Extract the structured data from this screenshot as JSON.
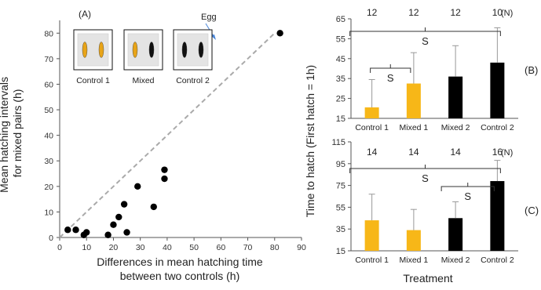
{
  "chart_data": [
    {
      "panel": "(A)",
      "type": "scatter",
      "xlabel_lines": [
        "Differences in mean hatching time",
        "between two controls (h)"
      ],
      "ylabel_lines": [
        "Mean hatching intervals",
        "for mixed pairs (h)"
      ],
      "xlim": [
        0,
        90
      ],
      "ylim": [
        0,
        85
      ],
      "x_ticks": [
        0,
        10,
        20,
        30,
        40,
        50,
        60,
        70,
        80,
        90
      ],
      "y_ticks": [
        0,
        10,
        20,
        30,
        40,
        50,
        60,
        70,
        80
      ],
      "points": [
        {
          "x": 3,
          "y": 3
        },
        {
          "x": 6,
          "y": 3
        },
        {
          "x": 9,
          "y": 1
        },
        {
          "x": 10,
          "y": 2
        },
        {
          "x": 18,
          "y": 1
        },
        {
          "x": 20,
          "y": 5
        },
        {
          "x": 22,
          "y": 8
        },
        {
          "x": 24,
          "y": 13
        },
        {
          "x": 25,
          "y": 2
        },
        {
          "x": 29,
          "y": 20
        },
        {
          "x": 35,
          "y": 12
        },
        {
          "x": 39,
          "y": 23
        },
        {
          "x": 39,
          "y": 26.5
        },
        {
          "x": 82,
          "y": 80
        }
      ],
      "reference_line": {
        "style": "dashed",
        "color": "#aaaaaa",
        "from": [
          0,
          0
        ],
        "to": [
          80,
          80
        ]
      },
      "insets": [
        {
          "label": "Control 1",
          "eggs": [
            "#e8a418",
            "#e8a418"
          ]
        },
        {
          "label": "Mixed",
          "eggs": [
            "#e8a418",
            "#111111"
          ]
        },
        {
          "label": "Control 2",
          "eggs": [
            "#111111",
            "#111111"
          ]
        }
      ],
      "annotation": "Egg"
    },
    {
      "panel": "(B)",
      "type": "bar",
      "categories": [
        "Control 1",
        "Mixed 1",
        "Mixed 2",
        "Control 2"
      ],
      "values": [
        20.5,
        32.5,
        36,
        43
      ],
      "error_upper": [
        34.5,
        48,
        51.5,
        60.5
      ],
      "colors": [
        "#f7b718",
        "#f7b718",
        "#000000",
        "#000000"
      ],
      "n_values": [
        "12",
        "12",
        "12",
        "10"
      ],
      "n_label": "(N)",
      "ylim": [
        15,
        65
      ],
      "y_ticks": [
        15,
        25,
        35,
        45,
        55,
        65
      ],
      "significance": [
        {
          "from": 0,
          "to": 1,
          "label": "S"
        },
        {
          "from": 0,
          "to": 3,
          "label": "S"
        }
      ]
    },
    {
      "panel": "(C)",
      "type": "bar",
      "categories": [
        "Control 1",
        "Mixed 1",
        "Mixed 2",
        "Control 2"
      ],
      "values": [
        43,
        34,
        45,
        79
      ],
      "error_upper": [
        67,
        53,
        60,
        98
      ],
      "colors": [
        "#f7b718",
        "#f7b718",
        "#000000",
        "#000000"
      ],
      "n_values": [
        "14",
        "14",
        "14",
        "16"
      ],
      "n_label": "(N)",
      "ylim": [
        15,
        115
      ],
      "y_ticks": [
        15,
        35,
        55,
        75,
        95,
        115
      ],
      "significance": [
        {
          "from": 2,
          "to": 3,
          "label": "S"
        },
        {
          "from": 0,
          "to": 3,
          "label": "S"
        }
      ]
    }
  ],
  "shared": {
    "bar_ylabel": "Time to hatch (First hatch = 1h)",
    "bar_xlabel": "Treatment"
  }
}
